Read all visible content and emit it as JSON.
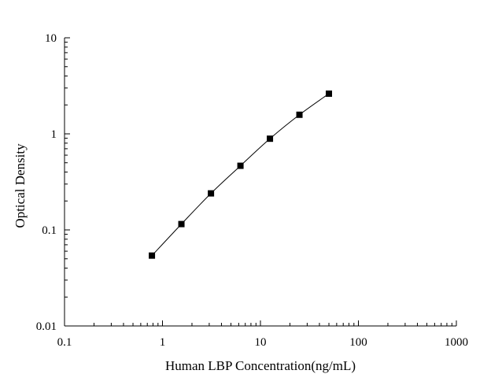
{
  "chart_data": {
    "type": "scatter",
    "xscale": "log",
    "yscale": "log",
    "xlim": [
      0.1,
      1000
    ],
    "ylim": [
      0.01,
      10
    ],
    "xlabel": "Human LBP Concentration(ng/mL)",
    "ylabel": "Optical Density",
    "x_ticks": [
      {
        "value": 0.1,
        "label": "0.1"
      },
      {
        "value": 1,
        "label": "1"
      },
      {
        "value": 10,
        "label": "10"
      },
      {
        "value": 100,
        "label": "100"
      },
      {
        "value": 1000,
        "label": "1000"
      }
    ],
    "y_ticks": [
      {
        "value": 0.01,
        "label": "0.01"
      },
      {
        "value": 0.1,
        "label": "0.1"
      },
      {
        "value": 1,
        "label": "1"
      },
      {
        "value": 10,
        "label": "10"
      }
    ],
    "grid": false,
    "series": [
      {
        "x": [
          0.78,
          1.56,
          3.125,
          6.25,
          12.5,
          25,
          50
        ],
        "y": [
          0.054,
          0.115,
          0.24,
          0.465,
          0.89,
          1.58,
          2.62
        ],
        "marker": "square",
        "color": "#000000",
        "fit_line": true
      }
    ]
  }
}
